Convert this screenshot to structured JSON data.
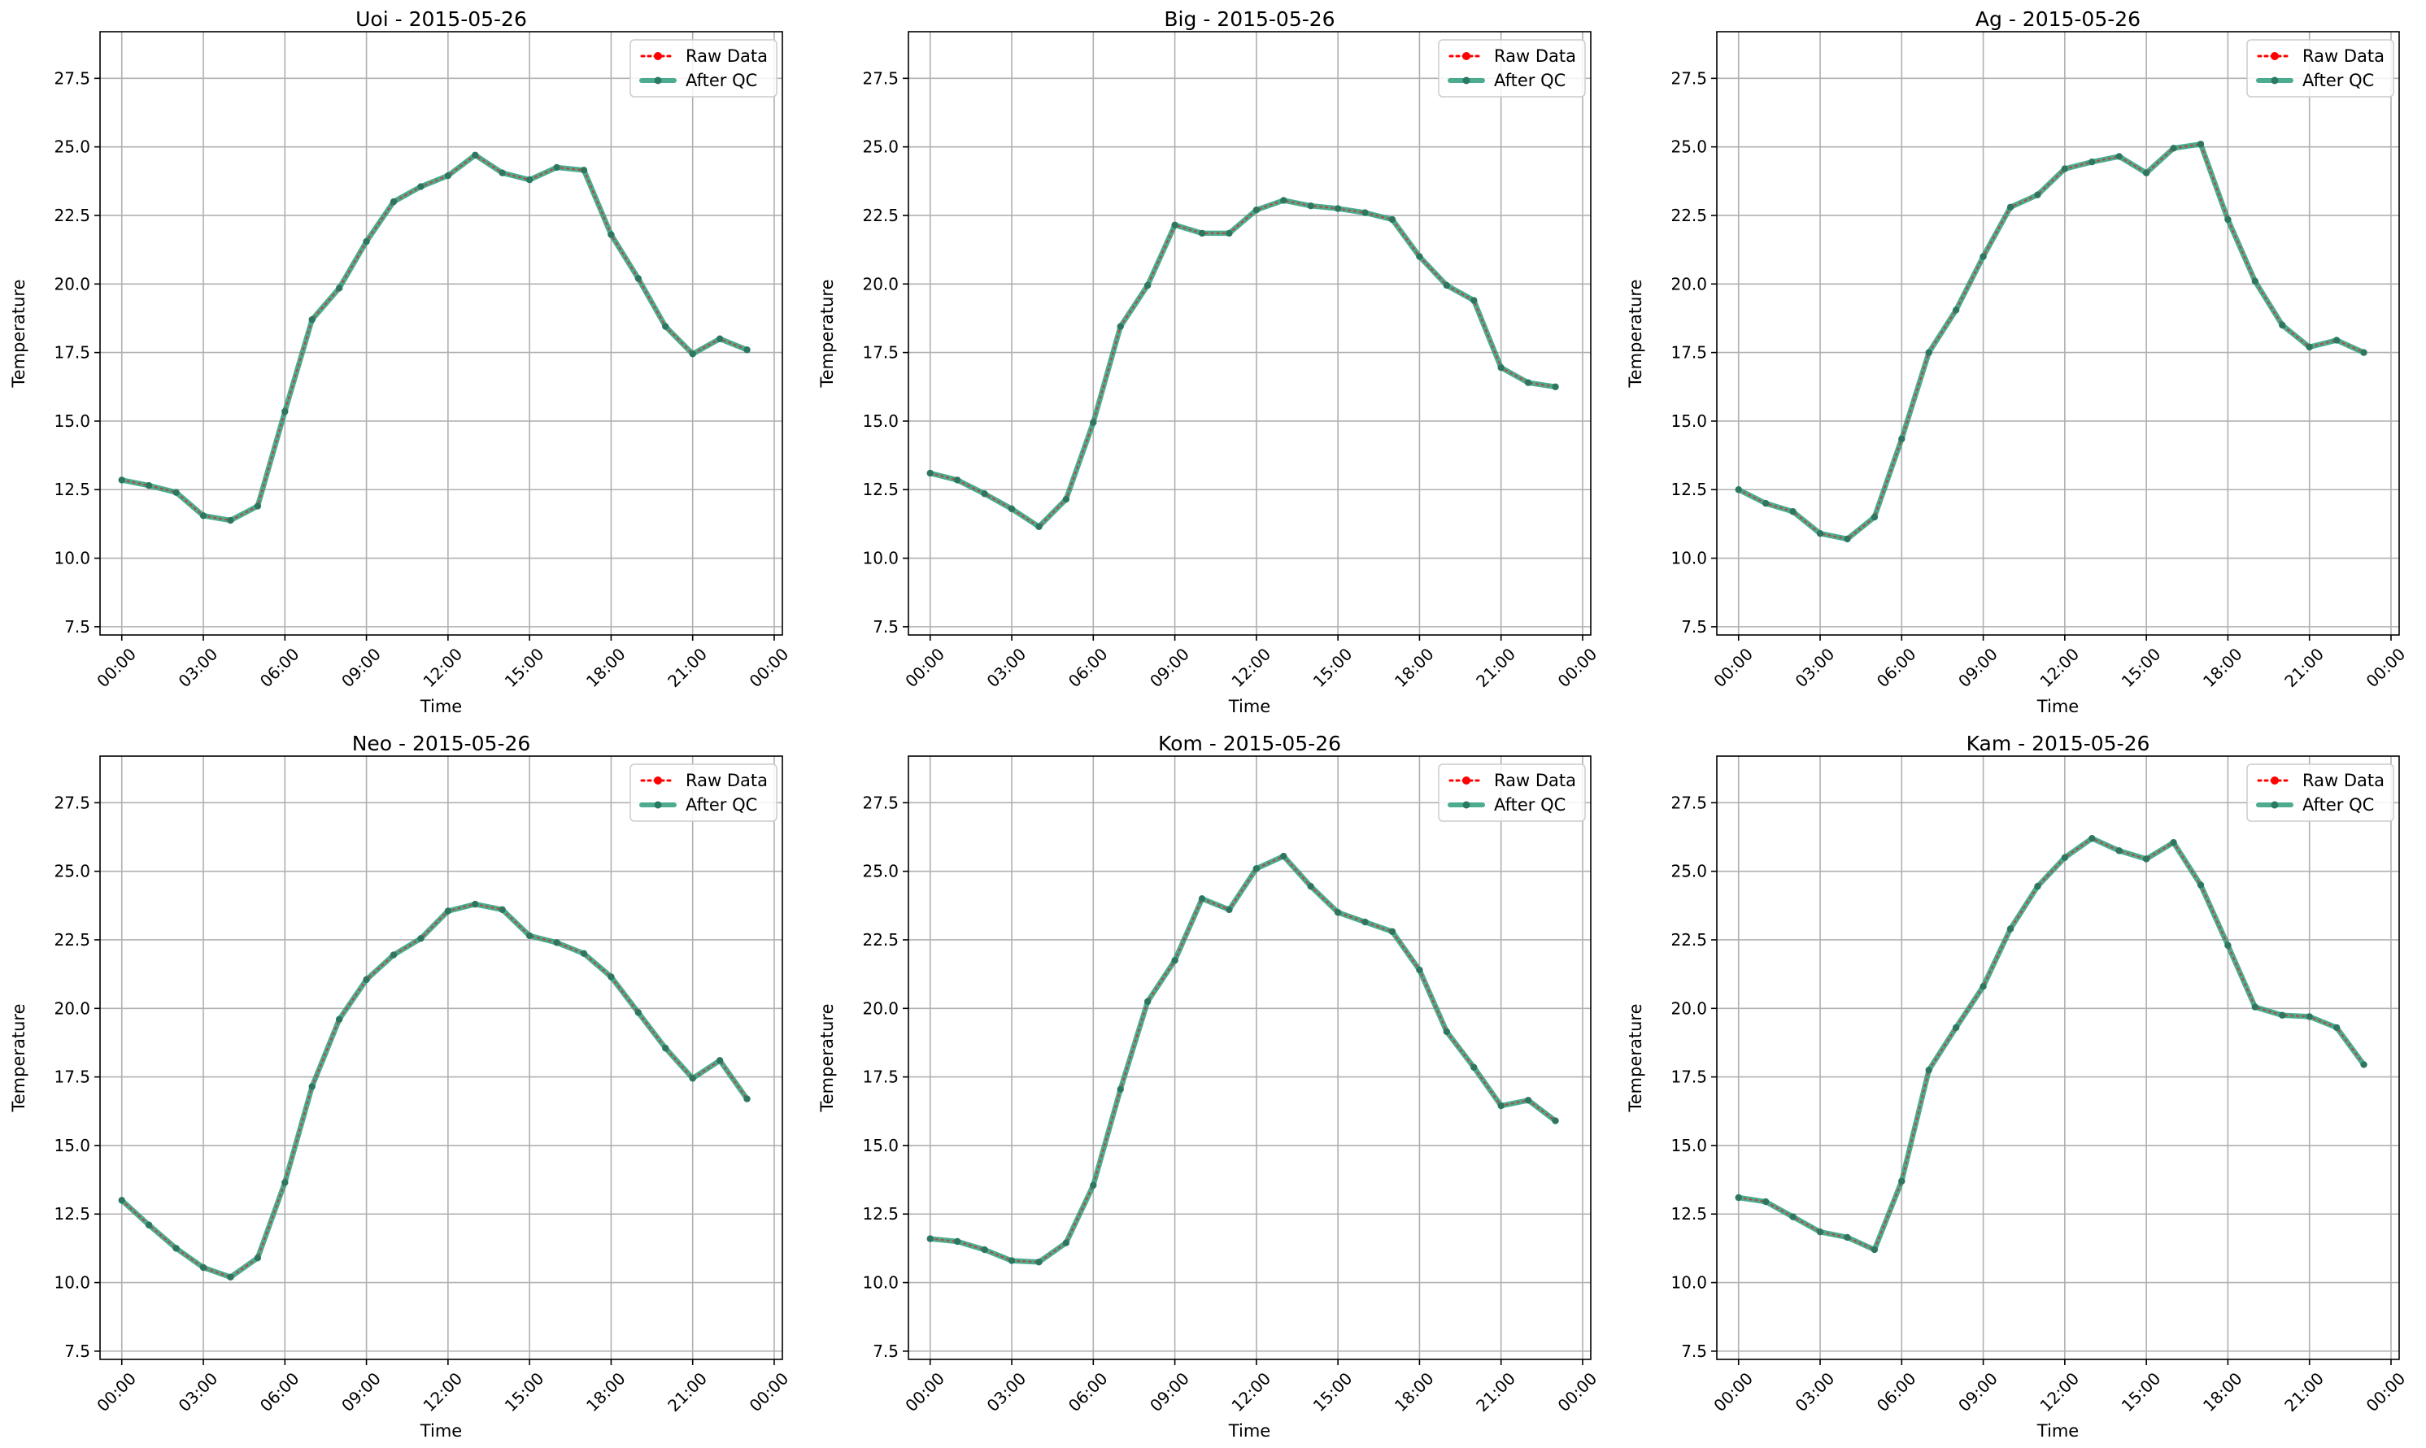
{
  "chart_data": [
    {
      "type": "line",
      "title": "Uoi - 2015-05-26",
      "xlabel": "Time",
      "ylabel": "Temperature",
      "ylim": [
        7.2,
        29.2
      ],
      "yticks": [
        "7.5",
        "10.0",
        "12.5",
        "15.0",
        "17.5",
        "20.0",
        "22.5",
        "25.0",
        "27.5"
      ],
      "xticks": [
        "00:00",
        "03:00",
        "06:00",
        "09:00",
        "12:00",
        "15:00",
        "18:00",
        "21:00",
        "00:00"
      ],
      "grid": true,
      "legend_position": "top-right",
      "x": [
        0,
        1,
        2,
        3,
        4,
        5,
        6,
        7,
        8,
        9,
        10,
        11,
        12,
        13,
        14,
        15,
        16,
        17,
        18,
        19,
        20,
        21,
        22,
        23
      ],
      "series": [
        {
          "name": "Raw Data",
          "values": [
            12.85,
            12.65,
            12.4,
            11.55,
            11.38,
            11.9,
            15.35,
            18.7,
            19.85,
            21.55,
            23.0,
            23.55,
            23.95,
            24.7,
            24.05,
            23.8,
            24.25,
            24.15,
            21.8,
            20.2,
            18.45,
            17.45,
            18.0,
            17.6
          ]
        },
        {
          "name": "After QC",
          "values": [
            12.85,
            12.65,
            12.4,
            11.55,
            11.38,
            11.9,
            15.35,
            18.7,
            19.85,
            21.55,
            23.0,
            23.55,
            23.95,
            24.7,
            24.05,
            23.8,
            24.25,
            24.15,
            21.8,
            20.2,
            18.45,
            17.45,
            18.0,
            17.6
          ]
        }
      ]
    },
    {
      "type": "line",
      "title": "Big - 2015-05-26",
      "xlabel": "Time",
      "ylabel": "Temperature",
      "ylim": [
        7.2,
        29.2
      ],
      "yticks": [
        "7.5",
        "10.0",
        "12.5",
        "15.0",
        "17.5",
        "20.0",
        "22.5",
        "25.0",
        "27.5"
      ],
      "xticks": [
        "00:00",
        "03:00",
        "06:00",
        "09:00",
        "12:00",
        "15:00",
        "18:00",
        "21:00",
        "00:00"
      ],
      "grid": true,
      "legend_position": "top-right",
      "x": [
        0,
        1,
        2,
        3,
        4,
        5,
        6,
        7,
        8,
        9,
        10,
        11,
        12,
        13,
        14,
        15,
        16,
        17,
        18,
        19,
        20,
        21,
        22,
        23
      ],
      "series": [
        {
          "name": "Raw Data",
          "values": [
            13.1,
            12.85,
            12.35,
            11.8,
            11.15,
            12.15,
            14.95,
            18.45,
            19.95,
            22.15,
            21.85,
            21.85,
            22.7,
            23.05,
            22.85,
            22.75,
            22.6,
            22.35,
            21.0,
            19.95,
            19.4,
            16.95,
            16.4,
            16.25
          ]
        },
        {
          "name": "After QC",
          "values": [
            13.1,
            12.85,
            12.35,
            11.8,
            11.15,
            12.15,
            14.95,
            18.45,
            19.95,
            22.15,
            21.85,
            21.85,
            22.7,
            23.05,
            22.85,
            22.75,
            22.6,
            22.35,
            21.0,
            19.95,
            19.4,
            16.95,
            16.4,
            16.25
          ]
        }
      ]
    },
    {
      "type": "line",
      "title": "Ag - 2015-05-26",
      "xlabel": "Time",
      "ylabel": "Temperature",
      "ylim": [
        7.2,
        29.2
      ],
      "yticks": [
        "7.5",
        "10.0",
        "12.5",
        "15.0",
        "17.5",
        "20.0",
        "22.5",
        "25.0",
        "27.5"
      ],
      "xticks": [
        "00:00",
        "03:00",
        "06:00",
        "09:00",
        "12:00",
        "15:00",
        "18:00",
        "21:00",
        "00:00"
      ],
      "grid": true,
      "legend_position": "top-right",
      "x": [
        0,
        1,
        2,
        3,
        4,
        5,
        6,
        7,
        8,
        9,
        10,
        11,
        12,
        13,
        14,
        15,
        16,
        17,
        18,
        19,
        20,
        21,
        22,
        23
      ],
      "series": [
        {
          "name": "Raw Data",
          "values": [
            12.5,
            12.0,
            11.7,
            10.9,
            10.7,
            11.5,
            14.35,
            17.5,
            19.05,
            21.0,
            22.8,
            23.25,
            24.2,
            24.45,
            24.65,
            24.05,
            24.95,
            25.1,
            22.35,
            20.1,
            18.5,
            17.7,
            17.95,
            17.5
          ]
        },
        {
          "name": "After QC",
          "values": [
            12.5,
            12.0,
            11.7,
            10.9,
            10.7,
            11.5,
            14.35,
            17.5,
            19.05,
            21.0,
            22.8,
            23.25,
            24.2,
            24.45,
            24.65,
            24.05,
            24.95,
            25.1,
            22.35,
            20.1,
            18.5,
            17.7,
            17.95,
            17.5
          ]
        }
      ]
    },
    {
      "type": "line",
      "title": "Neo - 2015-05-26",
      "xlabel": "Time",
      "ylabel": "Temperature",
      "ylim": [
        7.2,
        29.2
      ],
      "yticks": [
        "7.5",
        "10.0",
        "12.5",
        "15.0",
        "17.5",
        "20.0",
        "22.5",
        "25.0",
        "27.5"
      ],
      "xticks": [
        "00:00",
        "03:00",
        "06:00",
        "09:00",
        "12:00",
        "15:00",
        "18:00",
        "21:00",
        "00:00"
      ],
      "grid": true,
      "legend_position": "top-right",
      "x": [
        0,
        1,
        2,
        3,
        4,
        5,
        6,
        7,
        8,
        9,
        10,
        11,
        12,
        13,
        14,
        15,
        16,
        17,
        18,
        19,
        20,
        21,
        22,
        23
      ],
      "series": [
        {
          "name": "Raw Data",
          "values": [
            13.0,
            12.1,
            11.25,
            10.55,
            10.2,
            10.9,
            13.65,
            17.15,
            19.6,
            21.05,
            21.95,
            22.55,
            23.55,
            23.8,
            23.6,
            22.65,
            22.4,
            22.0,
            21.15,
            19.85,
            18.55,
            17.45,
            18.1,
            16.7
          ]
        },
        {
          "name": "After QC",
          "values": [
            13.0,
            12.1,
            11.25,
            10.55,
            10.2,
            10.9,
            13.65,
            17.15,
            19.6,
            21.05,
            21.95,
            22.55,
            23.55,
            23.8,
            23.6,
            22.65,
            22.4,
            22.0,
            21.15,
            19.85,
            18.55,
            17.45,
            18.1,
            16.7
          ]
        }
      ]
    },
    {
      "type": "line",
      "title": "Kom - 2015-05-26",
      "xlabel": "Time",
      "ylabel": "Temperature",
      "ylim": [
        7.2,
        29.2
      ],
      "yticks": [
        "7.5",
        "10.0",
        "12.5",
        "15.0",
        "17.5",
        "20.0",
        "22.5",
        "25.0",
        "27.5"
      ],
      "xticks": [
        "00:00",
        "03:00",
        "06:00",
        "09:00",
        "12:00",
        "15:00",
        "18:00",
        "21:00",
        "00:00"
      ],
      "grid": true,
      "legend_position": "top-right",
      "x": [
        0,
        1,
        2,
        3,
        4,
        5,
        6,
        7,
        8,
        9,
        10,
        11,
        12,
        13,
        14,
        15,
        16,
        17,
        18,
        19,
        20,
        21,
        22,
        23
      ],
      "series": [
        {
          "name": "Raw Data",
          "values": [
            11.6,
            11.5,
            11.2,
            10.8,
            10.75,
            11.45,
            13.55,
            17.05,
            20.25,
            21.75,
            24.0,
            23.6,
            25.1,
            25.55,
            24.45,
            23.5,
            23.15,
            22.8,
            21.4,
            19.15,
            17.85,
            16.45,
            16.65,
            15.9
          ]
        },
        {
          "name": "After QC",
          "values": [
            11.6,
            11.5,
            11.2,
            10.8,
            10.75,
            11.45,
            13.55,
            17.05,
            20.25,
            21.75,
            24.0,
            23.6,
            25.1,
            25.55,
            24.45,
            23.5,
            23.15,
            22.8,
            21.4,
            19.15,
            17.85,
            16.45,
            16.65,
            15.9
          ]
        }
      ]
    },
    {
      "type": "line",
      "title": "Kam - 2015-05-26",
      "xlabel": "Time",
      "ylabel": "Temperature",
      "ylim": [
        7.2,
        29.2
      ],
      "yticks": [
        "7.5",
        "10.0",
        "12.5",
        "15.0",
        "17.5",
        "20.0",
        "22.5",
        "25.0",
        "27.5"
      ],
      "xticks": [
        "00:00",
        "03:00",
        "06:00",
        "09:00",
        "12:00",
        "15:00",
        "18:00",
        "21:00",
        "00:00"
      ],
      "grid": true,
      "legend_position": "top-right",
      "x": [
        0,
        1,
        2,
        3,
        4,
        5,
        6,
        7,
        8,
        9,
        10,
        11,
        12,
        13,
        14,
        15,
        16,
        17,
        18,
        19,
        20,
        21,
        22,
        23
      ],
      "series": [
        {
          "name": "Raw Data",
          "values": [
            13.1,
            12.95,
            12.4,
            11.85,
            11.65,
            11.2,
            13.7,
            17.75,
            19.3,
            20.8,
            22.9,
            24.45,
            25.5,
            26.2,
            25.75,
            25.45,
            26.05,
            24.5,
            22.3,
            20.05,
            19.75,
            19.7,
            19.3,
            17.95
          ]
        },
        {
          "name": "After QC",
          "values": [
            13.1,
            12.95,
            12.4,
            11.85,
            11.65,
            11.2,
            13.7,
            17.75,
            19.3,
            20.8,
            22.9,
            24.45,
            25.5,
            26.2,
            25.75,
            25.45,
            26.05,
            24.5,
            22.3,
            20.05,
            19.75,
            19.7,
            19.3,
            17.95
          ]
        }
      ]
    }
  ],
  "colors": {
    "raw": "#ff0000",
    "after_qc": "#2e9e7d",
    "after_qc_marker": "#2a7a62",
    "grid": "#b0b0b0"
  }
}
